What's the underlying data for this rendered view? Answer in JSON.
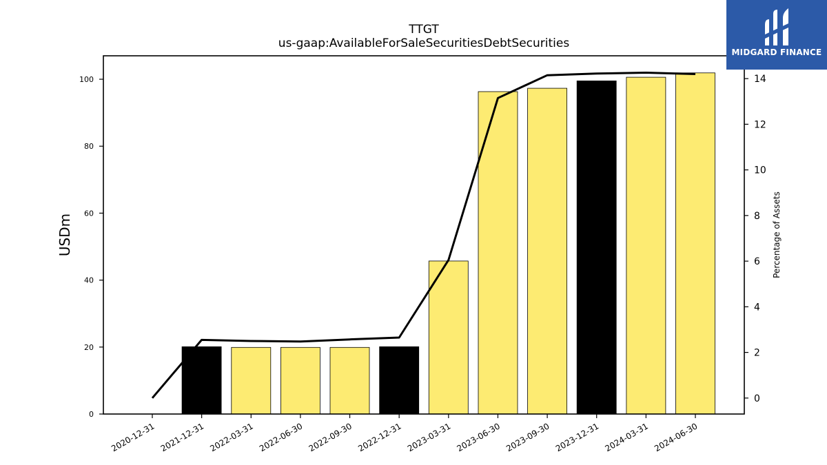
{
  "chart_data": {
    "type": "bar",
    "title": "TTGT",
    "subtitle": "us-gaap:AvailableForSaleSecuritiesDebtSecurities",
    "ylabel": "USDm",
    "y2label": "Percentage of Assets",
    "categories": [
      "2020-12-31",
      "2021-12-31",
      "2022-03-31",
      "2022-06-30",
      "2022-09-30",
      "2022-12-31",
      "2023-03-31",
      "2023-06-30",
      "2023-09-30",
      "2023-12-31",
      "2024-03-31",
      "2024-06-30"
    ],
    "series": [
      {
        "axis": "left",
        "type": "bar",
        "values": [
          0,
          20.1,
          19.9,
          19.9,
          19.9,
          20.1,
          45.7,
          96.3,
          97.3,
          99.5,
          100.6,
          101.9
        ],
        "colors": [
          "#fdeb72",
          "#000000",
          "#fdeb72",
          "#fdeb72",
          "#fdeb72",
          "#000000",
          "#fdeb72",
          "#fdeb72",
          "#fdeb72",
          "#000000",
          "#fdeb72",
          "#fdeb72"
        ]
      },
      {
        "axis": "right",
        "type": "line",
        "color": "#000000",
        "values": [
          0.0,
          2.55,
          2.5,
          2.48,
          2.57,
          2.65,
          6.05,
          13.15,
          14.15,
          14.22,
          14.26,
          14.2
        ]
      }
    ],
    "yticks": [
      0,
      20,
      40,
      60,
      80,
      100
    ],
    "y2ticks": [
      0,
      2,
      4,
      6,
      8,
      10,
      12,
      14
    ],
    "ylim": [
      0,
      107
    ],
    "y2lim": [
      -0.7,
      15.0
    ],
    "grid": false,
    "legend": "none"
  },
  "logo": {
    "text": "MIDGARD FINANCE"
  }
}
